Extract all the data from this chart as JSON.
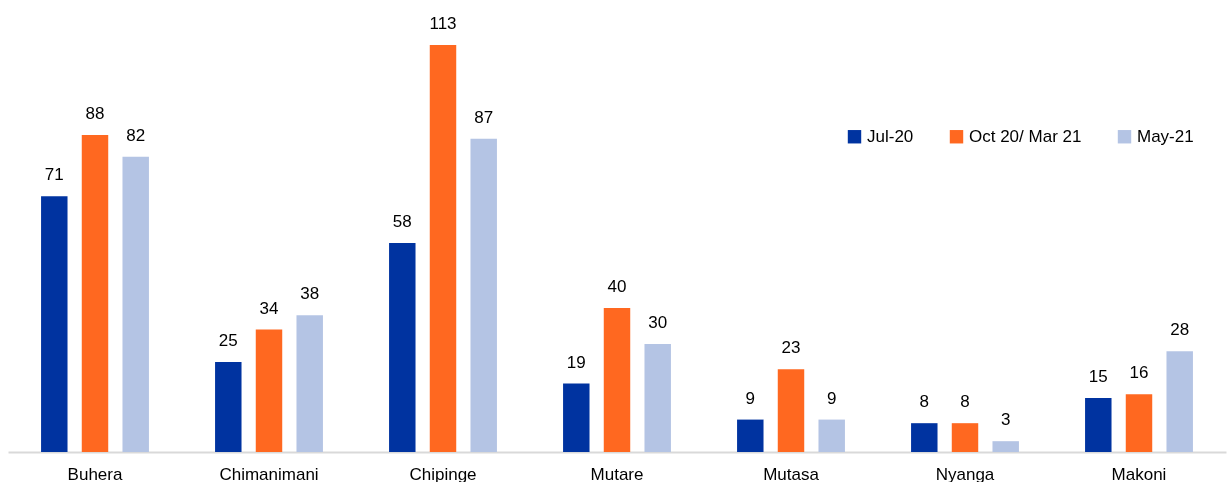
{
  "chart_data": {
    "type": "bar",
    "categories": [
      "Buhera",
      "Chimanimani",
      "Chipinge",
      "Mutare",
      "Mutasa",
      "Nyanga",
      "Makoni"
    ],
    "series": [
      {
        "name": "Jul-20",
        "color": "#0033a0",
        "values": [
          71,
          25,
          58,
          19,
          9,
          8,
          15
        ]
      },
      {
        "name": "Oct 20/ Mar 21",
        "color": "#ff6820",
        "values": [
          88,
          34,
          113,
          40,
          23,
          8,
          16
        ]
      },
      {
        "name": "May-21",
        "color": "#b4c4e4",
        "values": [
          82,
          38,
          87,
          30,
          9,
          3,
          28
        ]
      }
    ],
    "data_labels": true,
    "legend": "top right",
    "grid": false
  }
}
